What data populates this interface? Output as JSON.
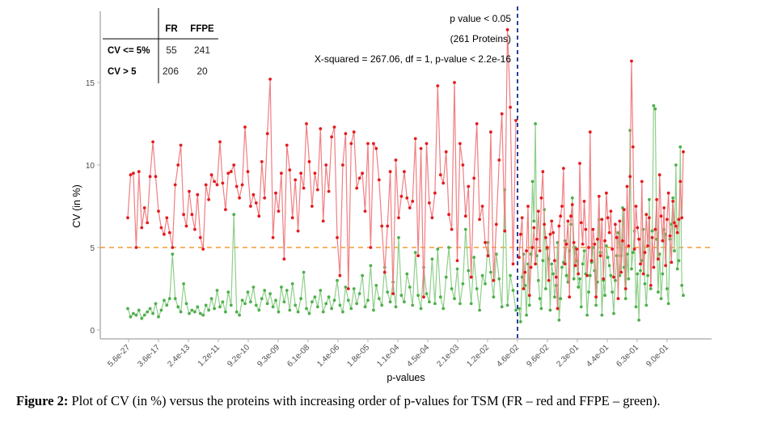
{
  "chart_data": {
    "type": "line",
    "title": "",
    "xlabel": "p-values",
    "ylabel": "CV (in %)",
    "ylim": [
      0,
      18.5
    ],
    "yticks": [
      0,
      5,
      10,
      15
    ],
    "ytick_labels": [
      "0",
      "5",
      "10",
      "15"
    ],
    "xtick_labels": [
      "5.6e-27",
      "3.6e-17",
      "2.4e-13",
      "1.2e-11",
      "9.2e-10",
      "9.3e-09",
      "6.1e-08",
      "1.4e-06",
      "1.8e-05",
      "1.1e-04",
      "4.5e-04",
      "2.1e-03",
      "1.2e-02",
      "4.6e-02",
      "9.6e-02",
      "2.3e-01",
      "4.4e-01",
      "6.3e-01",
      "9.0e-01"
    ],
    "x_description": "Proteins ordered by increasing p-value (index)",
    "n_points": 140,
    "grid": false,
    "legend": "none",
    "series": [
      {
        "name": "FR",
        "color": "#e41a1c",
        "values": [
          6.8,
          9.4,
          9.5,
          5.0,
          9.6,
          6.2,
          7.4,
          6.5,
          9.3,
          11.4,
          9.3,
          7.2,
          6.2,
          5.8,
          6.8,
          5.9,
          5.0,
          8.8,
          10.0,
          11.2,
          7.0,
          6.3,
          8.4,
          7.0,
          6.1,
          8.2,
          5.6,
          4.9,
          8.8,
          7.9,
          9.4,
          9.0,
          8.8,
          11.4,
          8.9,
          7.3,
          9.5,
          9.6,
          10.0,
          8.7,
          8.0,
          8.8,
          12.3,
          9.6,
          7.5,
          8.2,
          7.7,
          6.9,
          10.2,
          8.0,
          11.9,
          15.2,
          5.6,
          8.3,
          7.2,
          9.5,
          4.3,
          11.2,
          9.7,
          6.8,
          9.1,
          6.0,
          9.5,
          8.6,
          12.5,
          10.2,
          7.5,
          9.5,
          8.5,
          12.2,
          6.6,
          10.0,
          8.4,
          11.7,
          12.3,
          5.6,
          3.3,
          10.0,
          11.9,
          2.5,
          11.3,
          12.0,
          8.6,
          9.2,
          9.5,
          7.2,
          11.3,
          5.0,
          11.3,
          11.0,
          9.1,
          6.3,
          3.5,
          6.3,
          9.6,
          2.2,
          10.3,
          6.8,
          8.1,
          9.6,
          8.0,
          7.4,
          7.8,
          11.6,
          4.5,
          11.0,
          2.0,
          11.3,
          7.7,
          6.8,
          8.3,
          14.8,
          9.4,
          8.9,
          10.8,
          7.0,
          6.1,
          15.0,
          4.2,
          11.3,
          10.0,
          6.9,
          8.7,
          3.2,
          9.2,
          12.5,
          6.7,
          7.5,
          5.3,
          4.5,
          12.0,
          3.0,
          6.4,
          10.3,
          13.1,
          6.0,
          18.2,
          13.5,
          4.0,
          12.7
        ]
      },
      {
        "name": "FFPE",
        "color": "#4daf4a",
        "values": [
          1.3,
          0.8,
          1.0,
          0.9,
          1.2,
          0.7,
          0.9,
          1.1,
          1.3,
          1.0,
          1.6,
          0.8,
          1.2,
          1.8,
          1.5,
          1.9,
          4.6,
          1.9,
          1.4,
          1.1,
          2.8,
          1.6,
          1.0,
          1.2,
          1.1,
          1.4,
          1.0,
          0.9,
          1.5,
          1.2,
          1.9,
          1.3,
          2.4,
          1.4,
          1.7,
          1.1,
          2.3,
          1.5,
          7.0,
          1.1,
          0.9,
          1.8,
          1.6,
          2.3,
          1.7,
          2.6,
          1.5,
          1.2,
          1.9,
          2.4,
          1.6,
          2.2,
          1.4,
          1.8,
          1.1,
          2.6,
          1.7,
          2.4,
          1.2,
          2.8,
          1.5,
          1.1,
          1.9,
          3.5,
          1.3,
          1.0,
          1.7,
          2.0,
          1.4,
          2.4,
          1.1,
          1.6,
          2.0,
          1.3,
          1.8,
          3.0,
          1.5,
          1.1,
          2.6,
          1.8,
          1.3,
          2.5,
          1.6,
          2.2,
          3.3,
          1.4,
          1.8,
          3.9,
          1.2,
          2.7,
          1.9,
          1.5,
          3.8,
          2.3,
          1.7,
          2.9,
          1.4,
          5.6,
          2.1,
          1.7,
          3.4,
          2.6,
          1.5,
          4.7,
          2.1,
          1.3,
          3.8,
          2.2,
          1.7,
          4.3,
          1.6,
          4.9,
          2.0,
          1.3,
          3.2,
          5.0,
          2.5,
          1.9,
          3.7,
          1.6,
          2.8,
          6.1,
          3.6,
          1.6,
          4.4,
          2.5,
          1.2,
          3.3,
          2.8,
          5.3,
          3.5,
          2.0,
          4.6,
          3.1,
          1.4,
          8.5,
          1.5,
          3.3,
          2.4,
          1.2
        ]
      },
      {
        "name": "FR (p >= 0.05)",
        "color": "#e41a1c",
        "values": [
          4.4,
          5.8,
          6.8,
          2.5,
          3.5,
          4.8,
          7.5,
          2.1,
          3.8,
          5.0,
          6.2,
          4.0,
          5.5,
          7.2,
          4.8,
          8.0,
          9.6,
          6.4,
          5.6,
          5.0,
          3.0,
          5.8,
          6.6,
          5.9,
          4.2,
          3.2,
          1.3,
          6.3,
          6.9,
          7.5,
          9.8,
          4.0,
          5.2,
          6.6,
          2.0,
          6.9,
          7.6,
          5.3,
          3.9,
          4.9,
          3.4,
          10.1,
          6.5,
          5.2,
          7.8,
          6.1,
          3.3,
          5.0,
          12.0,
          4.2,
          6.1,
          5.2,
          2.0,
          5.5,
          8.1,
          4.5,
          6.7,
          3.1,
          5.4,
          8.3,
          6.8,
          5.9,
          7.2,
          4.9,
          3.2,
          6.4,
          5.6,
          1.9,
          6.6,
          3.5,
          5.4,
          7.3,
          2.5,
          8.7,
          5.1,
          9.3,
          16.3,
          11.1,
          4.9,
          7.5,
          6.2,
          5.5,
          4.0,
          9.0,
          3.4,
          4.7,
          7.0,
          5.1,
          6.8,
          2.7,
          5.6,
          3.8,
          6.1,
          7.9,
          4.3,
          9.4,
          6.9,
          5.4,
          7.4,
          3.9,
          6.7,
          8.3,
          5.7,
          4.1,
          7.8,
          6.5,
          6.3,
          5.9,
          6.7,
          9.0,
          6.8,
          10.8
        ]
      },
      {
        "name": "FFPE (p >= 0.05)",
        "color": "#4daf4a",
        "values": [
          1.3,
          0.5,
          3.2,
          4.6,
          2.7,
          0.9,
          4.0,
          1.5,
          4.6,
          9.0,
          6.6,
          12.5,
          4.5,
          3.0,
          1.9,
          1.3,
          4.2,
          7.3,
          2.5,
          4.9,
          4.3,
          1.2,
          4.0,
          3.4,
          2.0,
          2.7,
          5.3,
          0.6,
          1.9,
          3.8,
          4.1,
          5.4,
          3.3,
          2.9,
          4.8,
          6.4,
          8.0,
          3.1,
          5.0,
          4.2,
          2.6,
          3.1,
          1.4,
          4.0,
          4.8,
          3.4,
          0.9,
          2.3,
          3.3,
          4.1,
          5.0,
          3.6,
          1.5,
          2.9,
          6.7,
          4.7,
          0.9,
          3.0,
          2.1,
          5.1,
          4.4,
          3.9,
          3.3,
          2.3,
          1.0,
          3.0,
          4.5,
          5.9,
          3.3,
          4.5,
          7.4,
          3.8,
          1.9,
          4.6,
          3.1,
          12.1,
          3.7,
          4.7,
          6.0,
          1.4,
          3.4,
          0.6,
          3.6,
          4.2,
          6.1,
          2.8,
          1.5,
          3.3,
          7.9,
          2.5,
          6.0,
          13.6,
          13.4,
          5.5,
          2.3,
          4.6,
          1.9,
          3.4,
          6.1,
          5.8,
          2.5,
          1.6,
          5.5,
          6.4,
          8.0,
          4.8,
          10.0,
          3.7,
          4.2,
          11.1,
          2.7,
          2.1
        ]
      }
    ],
    "split_index": 139,
    "reference_lines": [
      {
        "type": "horizontal",
        "value": 5,
        "color": "#f39c32",
        "style": "dashed",
        "name": "cv-threshold"
      },
      {
        "type": "vertical",
        "at_label": "4.6e-02",
        "color": "#2b3f9e",
        "style": "dashed",
        "name": "p-value-threshold"
      }
    ],
    "annotations": {
      "pvalue_line_1": "p value < 0.05",
      "pvalue_line_2": "(261 Proteins)",
      "chisq": "X-squared = 267.06, df = 1, p-value < 2.2e-16"
    },
    "contingency_table": {
      "col_headers": [
        "FR",
        "FFPE"
      ],
      "rows": [
        {
          "label": "CV <= 5%",
          "values": [
            "55",
            "241"
          ]
        },
        {
          "label": "CV > 5",
          "values": [
            "206",
            "20"
          ]
        }
      ]
    }
  },
  "caption": {
    "figure_label": "Figure 2:",
    "text": " Plot of CV (in %) versus the proteins with increasing order of p-values for TSM (FR – red and FFPE – green)."
  }
}
